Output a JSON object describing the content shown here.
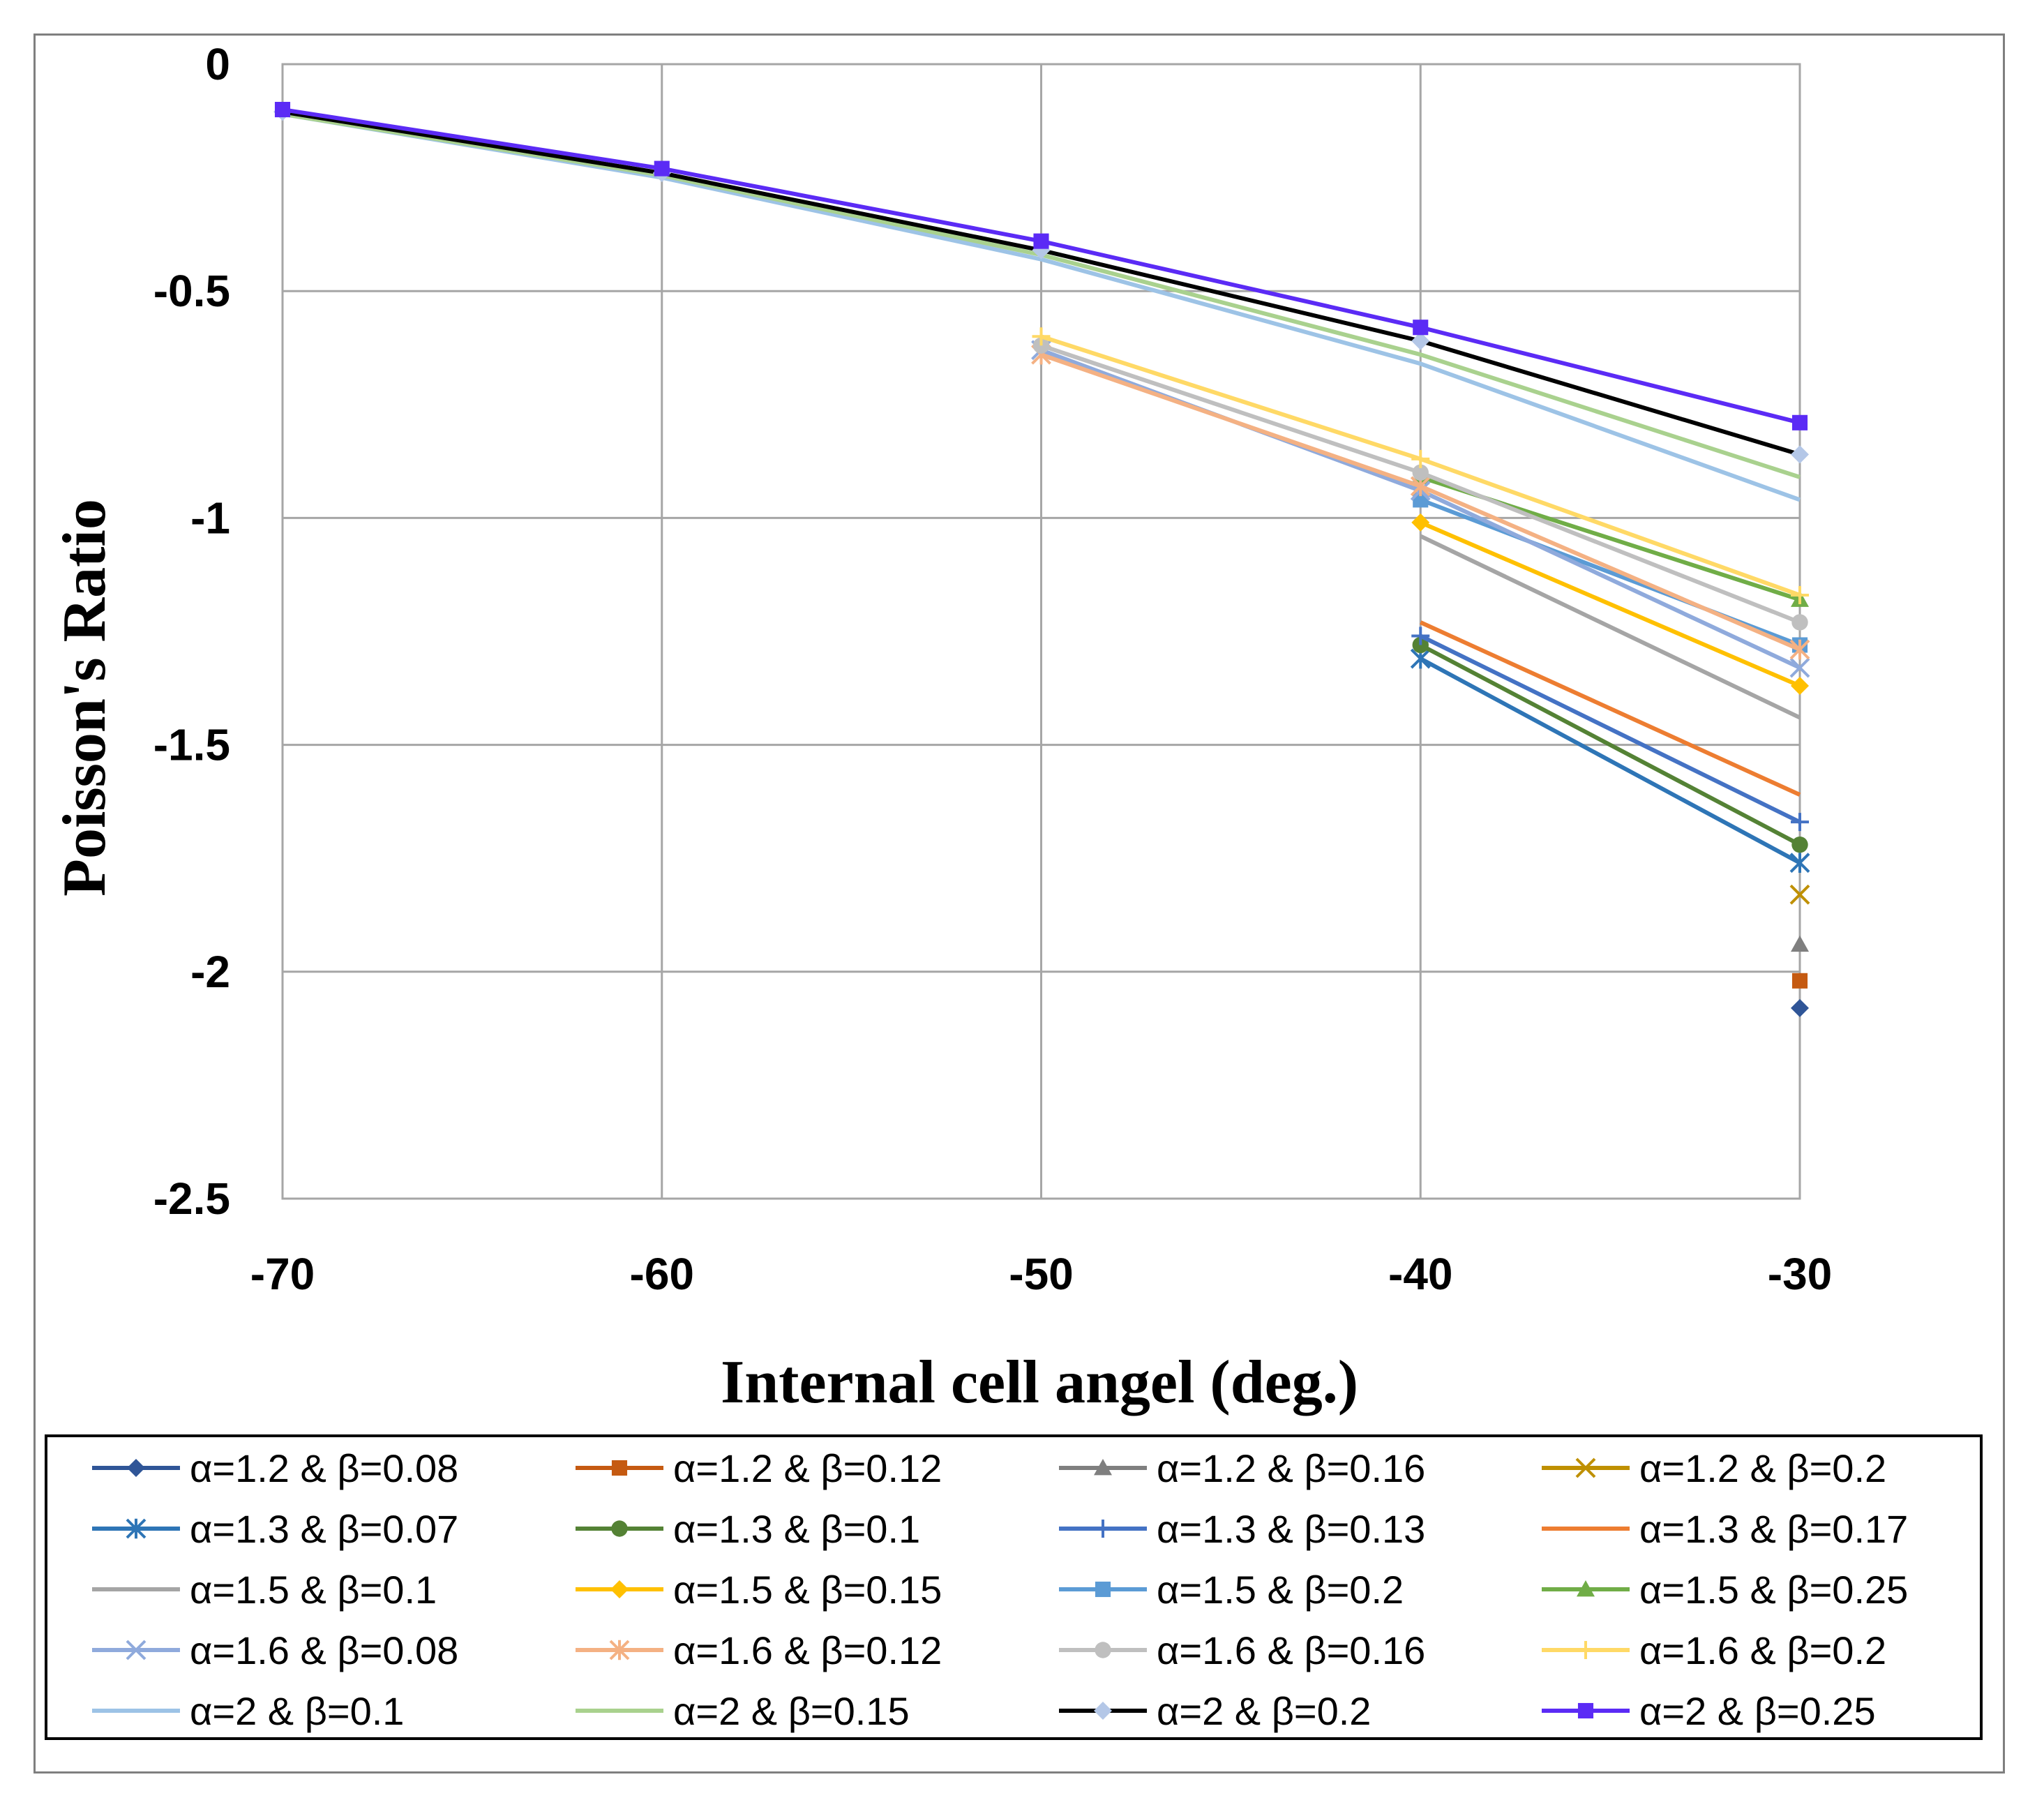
{
  "chart_data": {
    "type": "line",
    "title": "",
    "xlabel": "Internal cell angel (deg.)",
    "ylabel": "Poisson's Ratio",
    "xlim": [
      -70,
      -30
    ],
    "ylim": [
      -2.5,
      0
    ],
    "xticks": [
      -70,
      -60,
      -50,
      -40,
      -30
    ],
    "yticks": [
      0,
      -0.5,
      -1,
      -1.5,
      -2,
      -2.5
    ],
    "xtick_labels": [
      "-70",
      "-60",
      "-50",
      "-40",
      "-30"
    ],
    "ytick_labels": [
      "0",
      "-0.5",
      "-1",
      "-1.5",
      "-2",
      "-2.5"
    ],
    "grid": true,
    "legend_position": "bottom",
    "series": [
      {
        "name": "α=1.2 & β=0.08",
        "color": "#2F5597",
        "marker": "diamond",
        "x": [
          -30
        ],
        "y": [
          -2.08
        ]
      },
      {
        "name": "α=1.2 & β=0.12",
        "color": "#C55A11",
        "marker": "square",
        "x": [
          -30
        ],
        "y": [
          -2.02
        ]
      },
      {
        "name": "α=1.2 & β=0.16",
        "color": "#7F7F7F",
        "marker": "triangle",
        "x": [
          -30
        ],
        "y": [
          -1.94
        ]
      },
      {
        "name": "α=1.2 & β=0.2",
        "color": "#BF9000",
        "marker": "x",
        "x": [
          -30
        ],
        "y": [
          -1.83
        ]
      },
      {
        "name": "α=1.3 & β=0.07",
        "color": "#2E75B6",
        "marker": "star",
        "x": [
          -40,
          -30
        ],
        "y": [
          -1.31,
          -1.76
        ]
      },
      {
        "name": "α=1.3 & β=0.1",
        "color": "#548235",
        "marker": "circle",
        "x": [
          -40,
          -30
        ],
        "y": [
          -1.28,
          -1.72
        ]
      },
      {
        "name": "α=1.3 & β=0.13",
        "color": "#4472C4",
        "marker": "plus",
        "x": [
          -40,
          -30
        ],
        "y": [
          -1.26,
          -1.67
        ]
      },
      {
        "name": "α=1.3 & β=0.17",
        "color": "#ED7D31",
        "marker": "none",
        "x": [
          -40,
          -30
        ],
        "y": [
          -1.23,
          -1.61
        ]
      },
      {
        "name": "α=1.5 & β=0.1",
        "color": "#A5A5A5",
        "marker": "none",
        "x": [
          -40,
          -30
        ],
        "y": [
          -1.04,
          -1.44
        ]
      },
      {
        "name": "α=1.5 & β=0.15",
        "color": "#FFC000",
        "marker": "diamond",
        "x": [
          -40,
          -30
        ],
        "y": [
          -1.01,
          -1.37
        ]
      },
      {
        "name": "α=1.5 & β=0.2",
        "color": "#5B9BD5",
        "marker": "square",
        "x": [
          -40,
          -30
        ],
        "y": [
          -0.96,
          -1.28
        ]
      },
      {
        "name": "α=1.5 & β=0.25",
        "color": "#70AD47",
        "marker": "triangle",
        "x": [
          -40,
          -30
        ],
        "y": [
          -0.91,
          -1.18
        ]
      },
      {
        "name": "α=1.6 & β=0.08",
        "color": "#8FAADC",
        "marker": "x",
        "x": [
          -50,
          -40,
          -30
        ],
        "y": [
          -0.63,
          -0.94,
          -1.33
        ]
      },
      {
        "name": "α=1.6 & β=0.12",
        "color": "#F4B183",
        "marker": "star",
        "x": [
          -50,
          -40,
          -30
        ],
        "y": [
          -0.64,
          -0.93,
          -1.29
        ]
      },
      {
        "name": "α=1.6 & β=0.16",
        "color": "#BFBFBF",
        "marker": "circle",
        "x": [
          -50,
          -40,
          -30
        ],
        "y": [
          -0.62,
          -0.9,
          -1.23
        ]
      },
      {
        "name": "α=1.6 & β=0.2",
        "color": "#FFD966",
        "marker": "plus",
        "x": [
          -50,
          -40,
          -30
        ],
        "y": [
          -0.6,
          -0.87,
          -1.17
        ]
      },
      {
        "name": "α=2 & β=0.1",
        "color": "#9DC3E6",
        "marker": "none",
        "x": [
          -70,
          -60,
          -50,
          -40,
          -30
        ],
        "y": [
          -0.11,
          -0.25,
          -0.43,
          -0.66,
          -0.96
        ]
      },
      {
        "name": "α=2 & β=0.15",
        "color": "#A9D18E",
        "marker": "none",
        "x": [
          -70,
          -60,
          -50,
          -40,
          -30
        ],
        "y": [
          -0.11,
          -0.245,
          -0.42,
          -0.64,
          -0.91
        ]
      },
      {
        "name": "α=2 & β=0.2",
        "color": "#000000",
        "marker": "diamond",
        "marker_color": "#B4C7E7",
        "x": [
          -70,
          -60,
          -50,
          -40,
          -30
        ],
        "y": [
          -0.105,
          -0.24,
          -0.41,
          -0.61,
          -0.86
        ]
      },
      {
        "name": "α=2 & β=0.25",
        "color": "#5B2BF5",
        "marker": "square",
        "x": [
          -70,
          -60,
          -50,
          -40,
          -30
        ],
        "y": [
          -0.1,
          -0.23,
          -0.39,
          -0.58,
          -0.79
        ]
      }
    ]
  }
}
